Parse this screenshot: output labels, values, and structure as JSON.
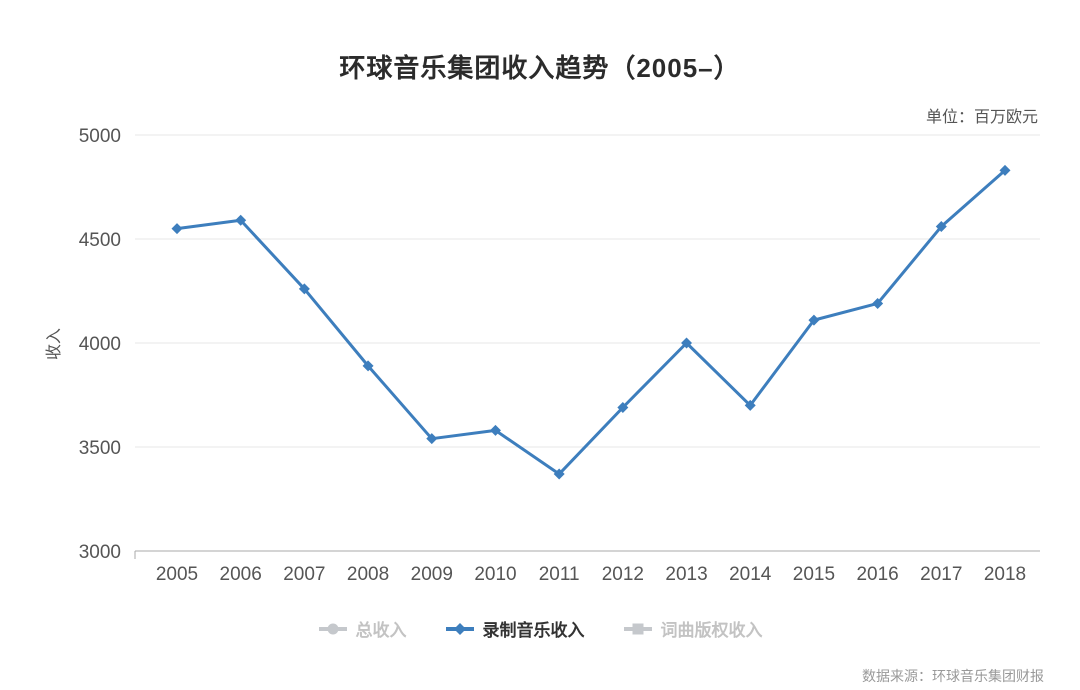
{
  "title": "环球音乐集团收入趋势（2005–）",
  "unit_label": "单位：百万欧元",
  "source_label": "数据来源：环球音乐集团财报",
  "colors": {
    "line": "#3d7ebd",
    "grid": "#e7e7e7",
    "axis_line": "#aaaaaa",
    "tick_text": "#555555",
    "title_text": "#2b2b2b",
    "muted": "#c5c8cc",
    "source_text": "#999999"
  },
  "chart_data": {
    "type": "line",
    "title": "环球音乐集团收入趋势（2005–）",
    "unit": "百万欧元",
    "categories": [
      "2005",
      "2006",
      "2007",
      "2008",
      "2009",
      "2010",
      "2011",
      "2012",
      "2013",
      "2014",
      "2015",
      "2016",
      "2017",
      "2018"
    ],
    "series": [
      {
        "name": "总收入",
        "visible": false,
        "marker": "circle",
        "color": "#c5c8cc",
        "values": []
      },
      {
        "name": "录制音乐收入",
        "visible": true,
        "marker": "diamond",
        "color": "#3d7ebd",
        "values": [
          4550,
          4590,
          4260,
          3890,
          3540,
          3580,
          3370,
          3690,
          4000,
          3700,
          4110,
          4190,
          4560,
          4830
        ]
      },
      {
        "name": "词曲版权收入",
        "visible": false,
        "marker": "square",
        "color": "#c5c8cc",
        "values": []
      }
    ],
    "xlabel": "",
    "ylabel": "收入",
    "ylim": [
      3000,
      5000
    ],
    "yticks": [
      3000,
      3500,
      4000,
      4500,
      5000
    ],
    "grid": true,
    "legend_position": "bottom",
    "source": "数据来源：环球音乐集团财报"
  }
}
